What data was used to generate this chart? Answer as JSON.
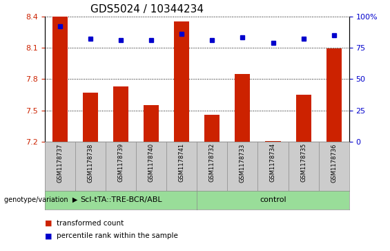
{
  "title": "GDS5024 / 10344234",
  "samples": [
    "GSM1178737",
    "GSM1178738",
    "GSM1178739",
    "GSM1178740",
    "GSM1178741",
    "GSM1178732",
    "GSM1178733",
    "GSM1178734",
    "GSM1178735",
    "GSM1178736"
  ],
  "bar_values": [
    8.4,
    7.67,
    7.73,
    7.55,
    8.35,
    7.46,
    7.85,
    7.21,
    7.65,
    8.09
  ],
  "percentile_values": [
    92,
    82,
    81,
    81,
    86,
    81,
    83,
    79,
    82,
    85
  ],
  "ymin": 7.2,
  "ymax": 8.4,
  "yticks": [
    7.2,
    7.5,
    7.8,
    8.1,
    8.4
  ],
  "right_yticks": [
    0,
    25,
    50,
    75,
    100
  ],
  "bar_color": "#cc2200",
  "dot_color": "#0000cc",
  "group1_label": "ScI-tTA::TRE-BCR/ABL",
  "group2_label": "control",
  "group_color": "#99dd99",
  "genotype_label": "genotype/variation",
  "legend_bar_label": "transformed count",
  "legend_dot_label": "percentile rank within the sample",
  "left_tick_color": "#cc2200",
  "right_tick_color": "#0000cc",
  "tick_bg_color": "#cccccc",
  "title_fontsize": 11,
  "tick_fontsize": 8,
  "label_fontsize": 7,
  "bar_width": 0.5
}
